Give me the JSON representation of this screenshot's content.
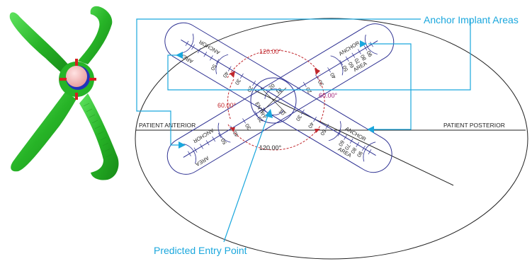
{
  "callouts": {
    "anchor_implant_areas": "Anchor Implant Areas",
    "predicted_entry_point": "Predicted Entry Point"
  },
  "axis_labels": {
    "anterior": "PATIENT ANTERIOR",
    "posterior": "PATIENT POSTERIOR"
  },
  "angles": {
    "top": "120.00°",
    "bottom": "120.00°",
    "left": "60.00°",
    "right": "60.00°"
  },
  "zone_labels": {
    "anchor": "ANCHOR",
    "area": "AREA",
    "entry": "ENTRY"
  },
  "ruler_ticks": [
    "10",
    "20",
    "30",
    "40",
    "50",
    "60",
    "70",
    "80",
    "90"
  ],
  "colors": {
    "callout": "#1aa7dd",
    "outline": "#2e3192",
    "angle_arc": "#c0272d",
    "angle_text": "#c0272d",
    "angle_text_alt": "#a0207a",
    "device_green": "#2fb52f"
  },
  "icons": {
    "device": "x-shaped-green-implant-device"
  }
}
